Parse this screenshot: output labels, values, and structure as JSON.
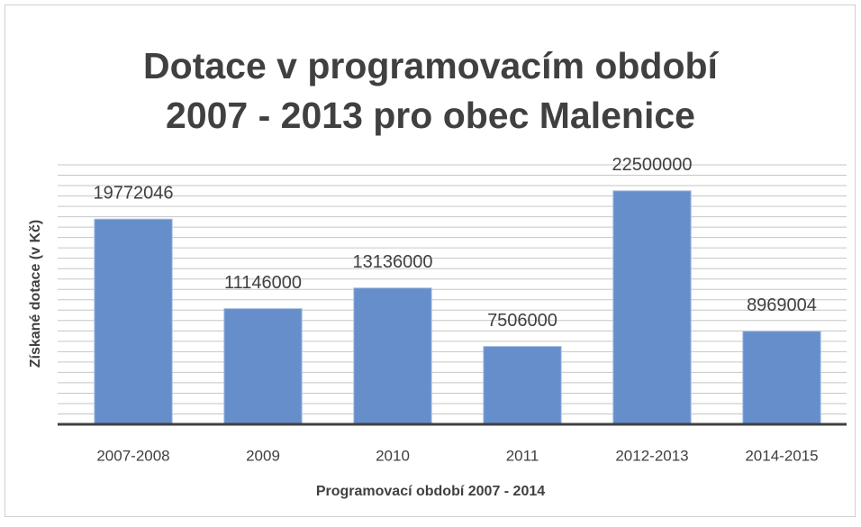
{
  "chart_data": {
    "type": "bar",
    "title": [
      "Dotace v programovacím období",
      "2007 - 2013 pro obec Malenice"
    ],
    "x_label": "Programovací období 2007 - 2014",
    "y_label": "Získané dotace (v Kč)",
    "categories": [
      "2007-2008",
      "2009",
      "2010",
      "2011",
      "2012-2013",
      "2014-2015"
    ],
    "values": [
      19772046,
      11146000,
      13136000,
      7506000,
      22500000,
      8969004
    ],
    "color": "#658ecb",
    "ylim": [
      0,
      25000000
    ],
    "yticks": [
      0,
      1000000,
      2000000,
      3000000,
      4000000,
      5000000,
      6000000,
      7000000,
      8000000,
      9000000,
      10000000,
      11000000,
      12000000,
      13000000,
      14000000,
      15000000,
      16000000,
      17000000,
      18000000,
      19000000,
      20000000,
      21000000,
      22000000,
      23000000,
      24000000,
      25000000
    ],
    "grid": true
  }
}
